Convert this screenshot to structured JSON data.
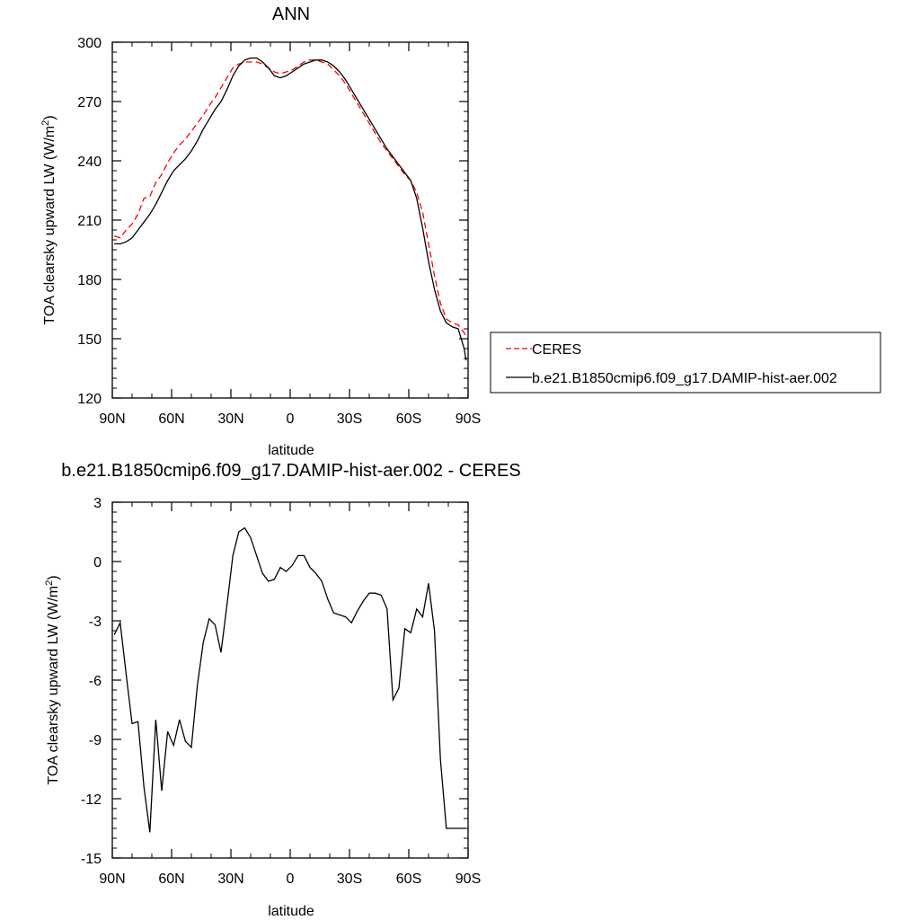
{
  "chart_data": [
    {
      "type": "line",
      "title": "ANN",
      "xlabel": "latitude",
      "ylabel": "TOA clearsky upward LW (W/m",
      "ylabel_sup": "2",
      "ylabel_end": ")",
      "xlim": [
        90,
        -90
      ],
      "ylim": [
        120,
        300
      ],
      "xticks": [
        90,
        60,
        30,
        0,
        -30,
        -60,
        -90
      ],
      "xtick_labels": [
        "90N",
        "60N",
        "30N",
        "0",
        "30S",
        "60S",
        "90S"
      ],
      "yticks": [
        120,
        150,
        180,
        210,
        240,
        270,
        300
      ],
      "ytick_labels": [
        "120",
        "150",
        "180",
        "210",
        "240",
        "270",
        "300"
      ],
      "legend": {
        "placement": "right-of-plot",
        "entries": [
          {
            "name": "CERES",
            "color": "#ff0000",
            "dash": "dashed"
          },
          {
            "name": "b.e21.B1850cmip6.f09_g17.DAMIP-hist-aer.002",
            "color": "#000000",
            "dash": "solid"
          }
        ]
      },
      "series": [
        {
          "name": "CERES",
          "color": "#ff0000",
          "dash": "dashed",
          "x": [
            89,
            86,
            83,
            80,
            77,
            74,
            71,
            68,
            65,
            62,
            59,
            56,
            53,
            50,
            47,
            44,
            41,
            38,
            35,
            32,
            29,
            26,
            23,
            20,
            17,
            14,
            11,
            8,
            5,
            2,
            -1,
            -4,
            -7,
            -10,
            -13,
            -16,
            -19,
            -22,
            -25,
            -28,
            -31,
            -34,
            -37,
            -40,
            -43,
            -46,
            -49,
            -52,
            -55,
            -58,
            -61,
            -64,
            -67,
            -70,
            -73,
            -76,
            -79,
            -82,
            -85,
            -88,
            -89
          ],
          "y": [
            202,
            201,
            205,
            208,
            213,
            221,
            222,
            229,
            233,
            239,
            244,
            248,
            251,
            255,
            259,
            263,
            268,
            272,
            277,
            282,
            287,
            289,
            290,
            290,
            290,
            289,
            287,
            285,
            284,
            285,
            286,
            288,
            290,
            291,
            291,
            290,
            289,
            286,
            283,
            279,
            274,
            269,
            264,
            259,
            254,
            249,
            245,
            241,
            237,
            233,
            230,
            224,
            214,
            198,
            182,
            168,
            160,
            158,
            157,
            153,
            151
          ]
        },
        {
          "name": "b.e21.B1850cmip6.f09_g17.DAMIP-hist-aer.002",
          "color": "#000000",
          "dash": "solid",
          "x": [
            89,
            86,
            83,
            80,
            77,
            74,
            71,
            68,
            65,
            62,
            59,
            56,
            53,
            50,
            47,
            44,
            41,
            38,
            35,
            32,
            29,
            26,
            23,
            20,
            17,
            14,
            11,
            8,
            5,
            2,
            -1,
            -4,
            -7,
            -10,
            -13,
            -16,
            -19,
            -22,
            -25,
            -28,
            -31,
            -34,
            -37,
            -40,
            -43,
            -46,
            -49,
            -52,
            -55,
            -58,
            -61,
            -64,
            -67,
            -70,
            -73,
            -76,
            -79,
            -82,
            -85,
            -88,
            -89
          ],
          "y": [
            198,
            198,
            199,
            201,
            205,
            209,
            213,
            218,
            224,
            230,
            235,
            238,
            241,
            245,
            250,
            256,
            261,
            266,
            270,
            276,
            283,
            288,
            291,
            292,
            292,
            290,
            287,
            283,
            282,
            283,
            285,
            287,
            289,
            290,
            291,
            291,
            290,
            288,
            285,
            281,
            276,
            271,
            266,
            261,
            256,
            251,
            246,
            242,
            238,
            234,
            230,
            221,
            206,
            189,
            175,
            164,
            158,
            156,
            155,
            145,
            139
          ]
        }
      ]
    },
    {
      "type": "line",
      "title": "b.e21.B1850cmip6.f09_g17.DAMIP-hist-aer.002 - CERES",
      "xlabel": "latitude",
      "ylabel": "TOA clearsky upward LW (W/m",
      "ylabel_sup": "2",
      "ylabel_end": ")",
      "xlim": [
        90,
        -90
      ],
      "ylim": [
        -15,
        3
      ],
      "xticks": [
        90,
        60,
        30,
        0,
        -30,
        -60,
        -90
      ],
      "xtick_labels": [
        "90N",
        "60N",
        "30N",
        "0",
        "30S",
        "60S",
        "90S"
      ],
      "yticks": [
        -15,
        -12,
        -9,
        -6,
        -3,
        0,
        3
      ],
      "ytick_labels": [
        "-15",
        "-12",
        "-9",
        "-6",
        "-3",
        "0",
        "3"
      ],
      "series": [
        {
          "color": "#000000",
          "dash": "solid",
          "x": [
            89,
            86,
            83,
            80,
            77,
            74,
            71,
            68,
            65,
            62,
            59,
            56,
            53,
            50,
            47,
            44,
            41,
            38,
            35,
            32,
            29,
            26,
            23,
            20,
            17,
            14,
            11,
            8,
            5,
            2,
            -1,
            -4,
            -7,
            -10,
            -13,
            -16,
            -19,
            -22,
            -25,
            -28,
            -31,
            -34,
            -37,
            -40,
            -43,
            -46,
            -49,
            -52,
            -55,
            -58,
            -61,
            -64,
            -67,
            -70,
            -73,
            -76,
            -79,
            -82,
            -85,
            -88,
            -89
          ],
          "y": [
            -3.7,
            -3.1,
            -5.7,
            -8.2,
            -8.1,
            -11.4,
            -13.7,
            -8.0,
            -11.6,
            -8.6,
            -9.3,
            -8.0,
            -9.1,
            -9.4,
            -6.3,
            -4.1,
            -2.9,
            -3.2,
            -4.6,
            -2.2,
            0.3,
            1.5,
            1.7,
            1.2,
            0.3,
            -0.6,
            -1.0,
            -0.9,
            -0.3,
            -0.5,
            -0.2,
            0.3,
            0.3,
            -0.3,
            -0.6,
            -1.0,
            -1.9,
            -2.6,
            -2.7,
            -2.8,
            -3.1,
            -2.5,
            -2.0,
            -1.6,
            -1.6,
            -1.7,
            -2.4,
            -7.0,
            -6.4,
            -3.4,
            -3.6,
            -2.4,
            -2.8,
            -1.1,
            -3.5,
            -10.0,
            -13.5,
            -13.5,
            -13.5,
            -13.5,
            -13.5
          ]
        }
      ]
    }
  ]
}
